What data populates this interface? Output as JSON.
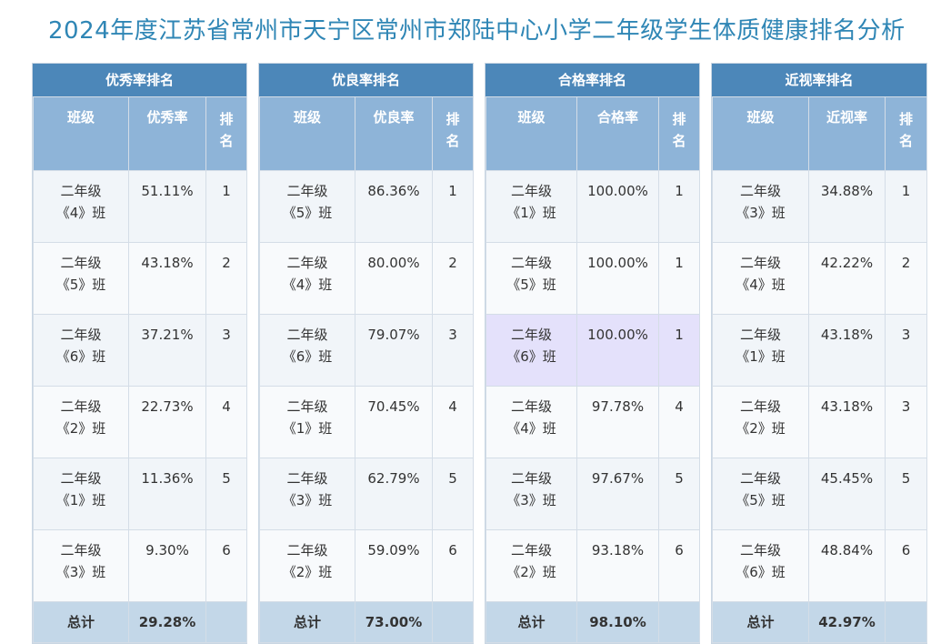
{
  "title": "2024年度江苏省常州市天宁区常州市郑陆中心小学二年级学生体质健康排名分析",
  "panels": [
    {
      "header": "优秀率排名",
      "col_class": "班级",
      "col_value": "优秀率",
      "col_rank": "排名",
      "rows": [
        {
          "grade": "二年级",
          "cls": "《4》班",
          "value": "51.11%",
          "rank": "1"
        },
        {
          "grade": "二年级",
          "cls": "《5》班",
          "value": "43.18%",
          "rank": "2"
        },
        {
          "grade": "二年级",
          "cls": "《6》班",
          "value": "37.21%",
          "rank": "3"
        },
        {
          "grade": "二年级",
          "cls": "《2》班",
          "value": "22.73%",
          "rank": "4"
        },
        {
          "grade": "二年级",
          "cls": "《1》班",
          "value": "11.36%",
          "rank": "5"
        },
        {
          "grade": "二年级",
          "cls": "《3》班",
          "value": "9.30%",
          "rank": "6"
        }
      ],
      "total_label": "总计",
      "total_value": "29.28%"
    },
    {
      "header": "优良率排名",
      "col_class": "班级",
      "col_value": "优良率",
      "col_rank": "排名",
      "rows": [
        {
          "grade": "二年级",
          "cls": "《5》班",
          "value": "86.36%",
          "rank": "1"
        },
        {
          "grade": "二年级",
          "cls": "《4》班",
          "value": "80.00%",
          "rank": "2"
        },
        {
          "grade": "二年级",
          "cls": "《6》班",
          "value": "79.07%",
          "rank": "3"
        },
        {
          "grade": "二年级",
          "cls": "《1》班",
          "value": "70.45%",
          "rank": "4"
        },
        {
          "grade": "二年级",
          "cls": "《3》班",
          "value": "62.79%",
          "rank": "5"
        },
        {
          "grade": "二年级",
          "cls": "《2》班",
          "value": "59.09%",
          "rank": "6"
        }
      ],
      "total_label": "总计",
      "total_value": "73.00%"
    },
    {
      "header": "合格率排名",
      "col_class": "班级",
      "col_value": "合格率",
      "col_rank": "排名",
      "rows": [
        {
          "grade": "二年级",
          "cls": "《1》班",
          "value": "100.00%",
          "rank": "1"
        },
        {
          "grade": "二年级",
          "cls": "《5》班",
          "value": "100.00%",
          "rank": "1"
        },
        {
          "grade": "二年级",
          "cls": "《6》班",
          "value": "100.00%",
          "rank": "1"
        },
        {
          "grade": "二年级",
          "cls": "《4》班",
          "value": "97.78%",
          "rank": "4"
        },
        {
          "grade": "二年级",
          "cls": "《3》班",
          "value": "97.67%",
          "rank": "5"
        },
        {
          "grade": "二年级",
          "cls": "《2》班",
          "value": "93.18%",
          "rank": "6"
        }
      ],
      "total_label": "总计",
      "total_value": "98.10%"
    },
    {
      "header": "近视率排名",
      "col_class": "班级",
      "col_value": "近视率",
      "col_rank": "排名",
      "rows": [
        {
          "grade": "二年级",
          "cls": "《3》班",
          "value": "34.88%",
          "rank": "1"
        },
        {
          "grade": "二年级",
          "cls": "《4》班",
          "value": "42.22%",
          "rank": "2"
        },
        {
          "grade": "二年级",
          "cls": "《1》班",
          "value": "43.18%",
          "rank": "3"
        },
        {
          "grade": "二年级",
          "cls": "《2》班",
          "value": "43.18%",
          "rank": "3"
        },
        {
          "grade": "二年级",
          "cls": "《5》班",
          "value": "45.45%",
          "rank": "5"
        },
        {
          "grade": "二年级",
          "cls": "《6》班",
          "value": "48.84%",
          "rank": "6"
        }
      ],
      "total_label": "总计",
      "total_value": "42.97%"
    }
  ]
}
